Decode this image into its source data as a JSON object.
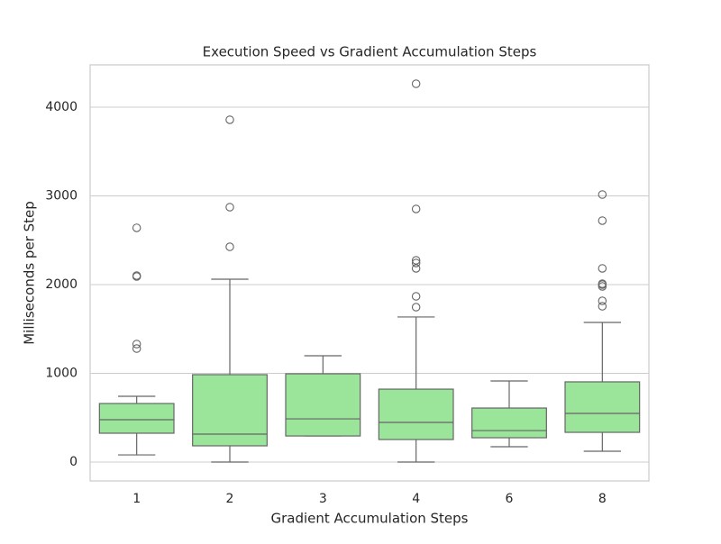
{
  "chart_data": {
    "type": "box",
    "title": "Execution Speed vs Gradient Accumulation Steps",
    "x_label": "Gradient Accumulation Steps",
    "y_label": "Milliseconds per Step",
    "categories": [
      "1",
      "2",
      "3",
      "4",
      "6",
      "8"
    ],
    "color": "#9ae59a",
    "edge_color": "#666666",
    "ylim": [
      -213,
      4477
    ],
    "yticks": [
      0,
      1000,
      2000,
      3000,
      4000
    ],
    "grid": true,
    "boxes": [
      {
        "whislo": 81,
        "q1": 325,
        "med": 477,
        "q3": 660,
        "whishi": 741,
        "fliers": [
          2640,
          2102,
          2091,
          1330,
          1279
        ]
      },
      {
        "whislo": 0,
        "q1": 183,
        "med": 315,
        "q3": 985,
        "whishi": 2061,
        "fliers": [
          3858,
          2873,
          2426
        ]
      },
      {
        "whislo": 294,
        "q1": 294,
        "med": 487,
        "q3": 995,
        "whishi": 1198,
        "fliers": []
      },
      {
        "whislo": 0,
        "q1": 254,
        "med": 447,
        "q3": 822,
        "whishi": 1635,
        "fliers": [
          4264,
          2853,
          2274,
          2244,
          2183,
          1868,
          1746
        ]
      },
      {
        "whislo": 173,
        "q1": 274,
        "med": 355,
        "q3": 609,
        "whishi": 914,
        "fliers": []
      },
      {
        "whislo": 122,
        "q1": 335,
        "med": 548,
        "q3": 904,
        "whishi": 1574,
        "fliers": [
          3015,
          2721,
          2183,
          2010,
          2000,
          1980,
          1817,
          1756
        ]
      }
    ]
  }
}
